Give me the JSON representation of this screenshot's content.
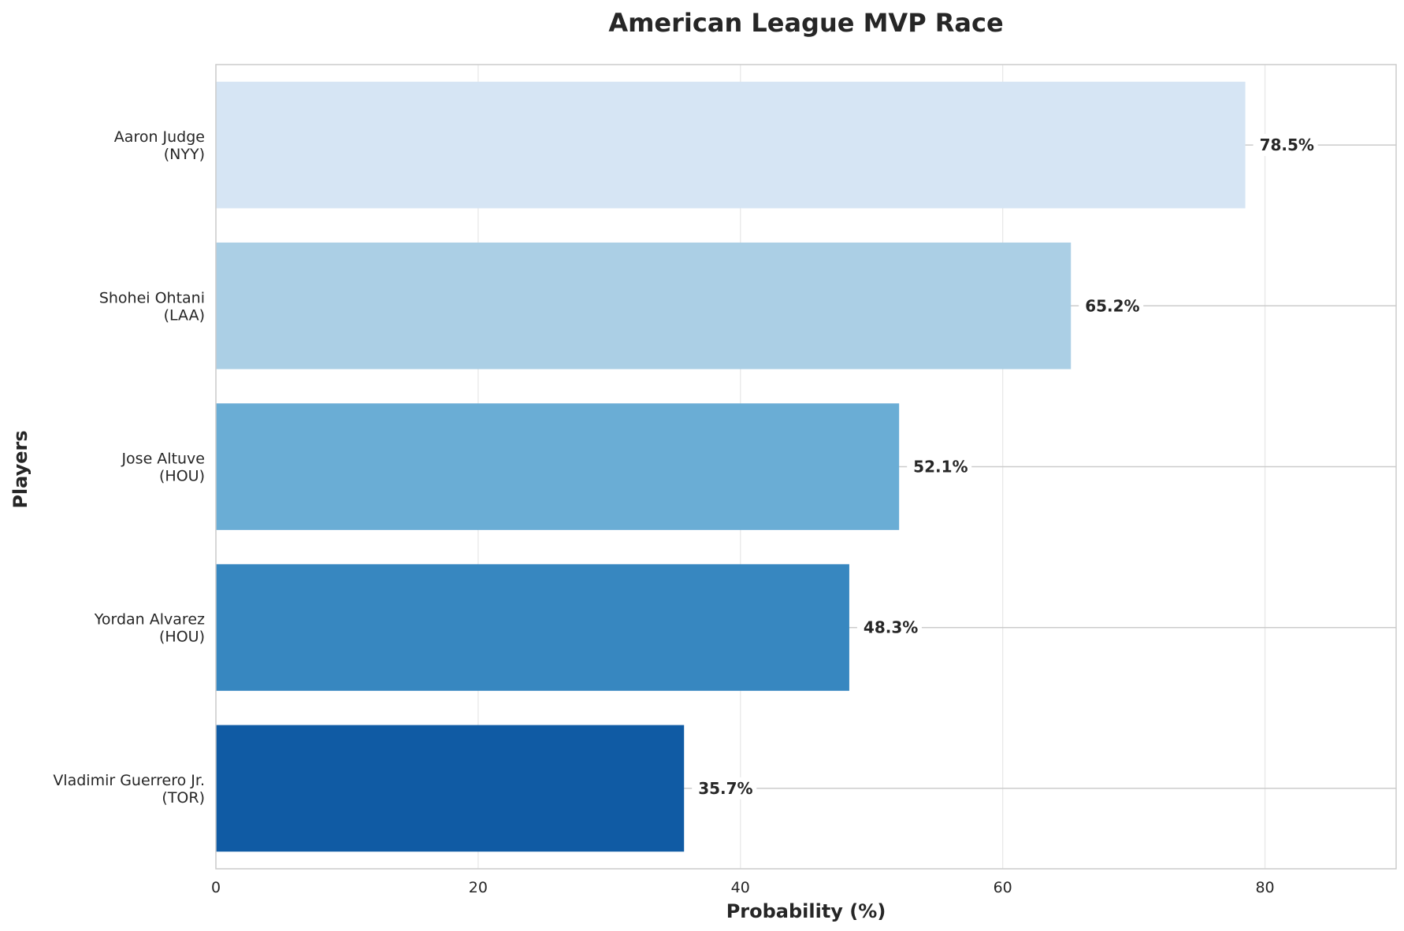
{
  "chart_data": {
    "type": "bar",
    "orientation": "horizontal",
    "title": "American League MVP Race",
    "xlabel": "Probability (%)",
    "ylabel": "Players",
    "xlim": [
      0,
      90
    ],
    "x_ticks": [
      0,
      20,
      40,
      60,
      80
    ],
    "grid": true,
    "categories": [
      [
        "Aaron Judge",
        "(NYY)"
      ],
      [
        "Shohei Ohtani",
        "(LAA)"
      ],
      [
        "Jose Altuve",
        "(HOU)"
      ],
      [
        "Yordan Alvarez",
        "(HOU)"
      ],
      [
        "Vladimir Guerrero Jr.",
        "(TOR)"
      ]
    ],
    "values": [
      78.5,
      65.2,
      52.1,
      48.3,
      35.7
    ],
    "value_labels": [
      "78.5%",
      "65.2%",
      "52.1%",
      "48.3%",
      "35.7%"
    ],
    "colors": [
      "#d6e5f4",
      "#abcfe5",
      "#6aadd5",
      "#3787c0",
      "#105ba4"
    ]
  }
}
